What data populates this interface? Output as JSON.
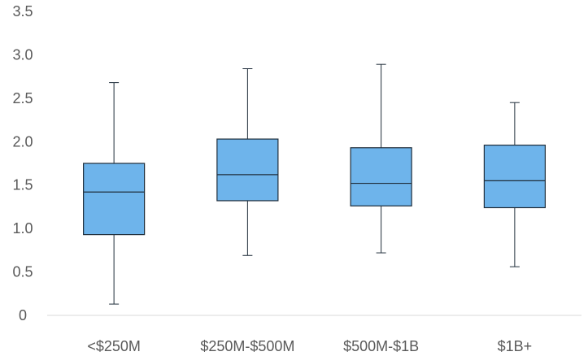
{
  "chart_data": {
    "type": "box",
    "title": "",
    "xlabel": "",
    "ylabel": "",
    "ylim": [
      0,
      3.5
    ],
    "yticks": [
      "0",
      "0.5",
      "1.0",
      "1.5",
      "2.0",
      "2.5",
      "3.0",
      "3.5"
    ],
    "grid": false,
    "legend": "none",
    "categories": [
      "<$250M",
      "$250M-$500M",
      "$500M-$1B",
      "$1B+"
    ],
    "boxes": [
      {
        "min": 0.13,
        "q1": 0.93,
        "median": 1.42,
        "q3": 1.75,
        "max": 2.68
      },
      {
        "min": 0.69,
        "q1": 1.32,
        "median": 1.62,
        "q3": 2.03,
        "max": 2.84
      },
      {
        "min": 0.72,
        "q1": 1.26,
        "median": 1.52,
        "q3": 1.93,
        "max": 2.89
      },
      {
        "min": 0.56,
        "q1": 1.24,
        "median": 1.55,
        "q3": 1.96,
        "max": 2.45
      }
    ],
    "colors": {
      "box_fill": "#6EB4EB",
      "stroke": "#1F2D3A",
      "axis": "#D9D9D9",
      "text": "#595959"
    }
  }
}
